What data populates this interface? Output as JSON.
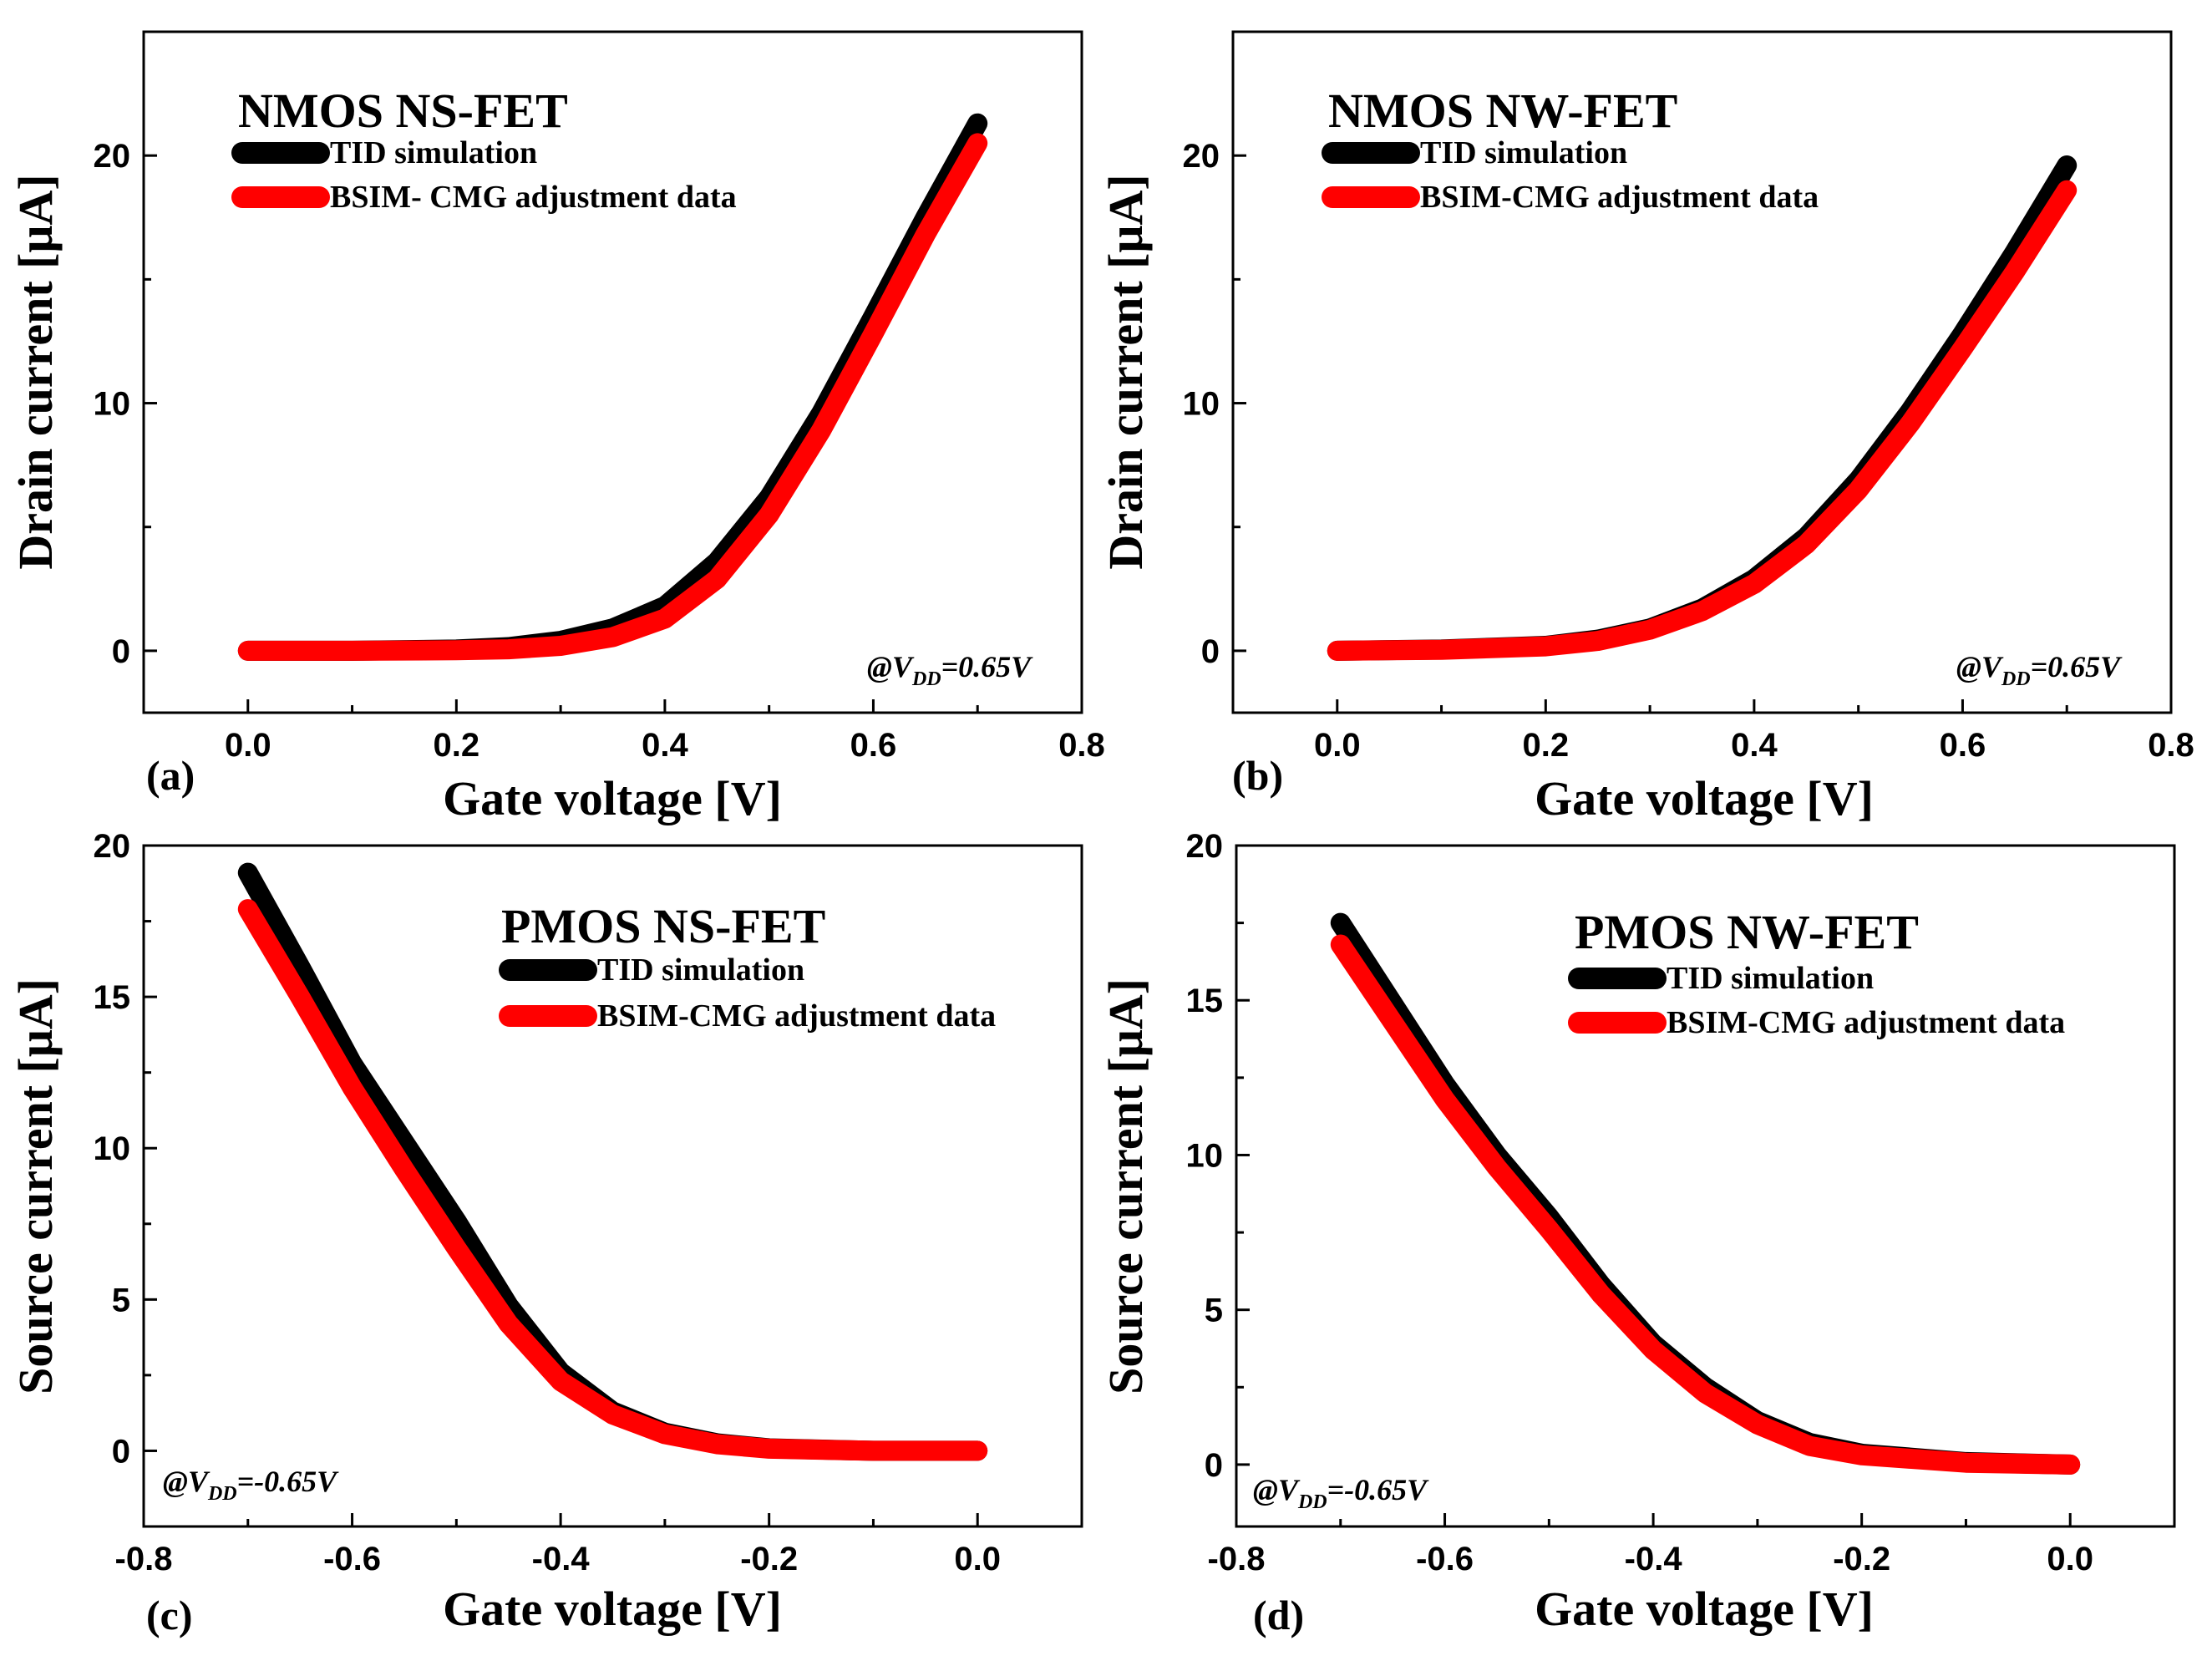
{
  "figure": {
    "label_template": "({id})"
  },
  "chart_data": [
    {
      "id": "a",
      "type": "line",
      "title": "NMOS NS-FET",
      "xlabel": "Gate voltage [V]",
      "ylabel": "Drain current [μA]",
      "xlim": [
        -0.1,
        0.8
      ],
      "ylim": [
        -2.5,
        25
      ],
      "xticks": [
        0.0,
        0.2,
        0.4,
        0.6,
        0.8
      ],
      "xtick_labels": [
        "0.0",
        "0.2",
        "0.4",
        "0.6",
        "0.8"
      ],
      "yticks": [
        0,
        10,
        20
      ],
      "ytick_labels": [
        "0",
        "10",
        "20"
      ],
      "annotation": {
        "prefix": "@V",
        "sub": "DD",
        "suffix": "=0.65V"
      },
      "legend": [
        "TID simulation",
        "BSIM- CMG adjustment data"
      ],
      "series": [
        {
          "name": "TID simulation",
          "color": "#000000",
          "x": [
            0.0,
            0.1,
            0.2,
            0.25,
            0.3,
            0.35,
            0.4,
            0.45,
            0.5,
            0.55,
            0.6,
            0.65,
            0.7
          ],
          "y": [
            0.0,
            0.0,
            0.05,
            0.15,
            0.4,
            0.9,
            1.8,
            3.6,
            6.2,
            9.6,
            13.5,
            17.5,
            21.3
          ]
        },
        {
          "name": "BSIM- CMG adjustment data",
          "color": "#ff0000",
          "x": [
            0.0,
            0.1,
            0.2,
            0.25,
            0.3,
            0.35,
            0.4,
            0.45,
            0.5,
            0.55,
            0.6,
            0.65,
            0.7
          ],
          "y": [
            0.0,
            0.0,
            0.02,
            0.06,
            0.2,
            0.55,
            1.3,
            2.9,
            5.5,
            8.9,
            12.8,
            16.8,
            20.5
          ]
        }
      ]
    },
    {
      "id": "b",
      "type": "line",
      "title": "NMOS NW-FET",
      "xlabel": "Gate voltage [V]",
      "ylabel": "Drain current [μA]",
      "xlim": [
        -0.1,
        0.8
      ],
      "ylim": [
        -2.5,
        25
      ],
      "xticks": [
        0.0,
        0.2,
        0.4,
        0.6,
        0.8
      ],
      "xtick_labels": [
        "0.0",
        "0.2",
        "0.4",
        "0.6",
        "0.8"
      ],
      "yticks": [
        0,
        10,
        20
      ],
      "ytick_labels": [
        "0",
        "10",
        "20"
      ],
      "annotation": {
        "prefix": "@V",
        "sub": "DD",
        "suffix": "=0.65V"
      },
      "legend": [
        "TID simulation",
        "BSIM-CMG adjustment data"
      ],
      "series": [
        {
          "name": "TID simulation",
          "color": "#000000",
          "x": [
            0.0,
            0.1,
            0.2,
            0.25,
            0.3,
            0.35,
            0.4,
            0.45,
            0.5,
            0.55,
            0.6,
            0.65,
            0.7
          ],
          "y": [
            0.0,
            0.05,
            0.2,
            0.45,
            0.9,
            1.7,
            2.9,
            4.6,
            6.9,
            9.7,
            12.8,
            16.1,
            19.6
          ]
        },
        {
          "name": "BSIM-CMG adjustment data",
          "color": "#ff0000",
          "x": [
            0.0,
            0.1,
            0.2,
            0.25,
            0.3,
            0.35,
            0.4,
            0.45,
            0.5,
            0.55,
            0.6,
            0.65,
            0.7
          ],
          "y": [
            0.0,
            0.04,
            0.18,
            0.4,
            0.85,
            1.6,
            2.7,
            4.3,
            6.5,
            9.2,
            12.2,
            15.3,
            18.6
          ]
        }
      ]
    },
    {
      "id": "c",
      "type": "line",
      "title": "PMOS NS-FET",
      "xlabel": "Gate voltage [V]",
      "ylabel": "Source current [μA]",
      "xlim": [
        -0.8,
        0.1
      ],
      "ylim": [
        -2.5,
        20
      ],
      "xticks": [
        -0.8,
        -0.6,
        -0.4,
        -0.2,
        0.0
      ],
      "xtick_labels": [
        "-0.8",
        "-0.6",
        "-0.4",
        "-0.2",
        "0.0"
      ],
      "yticks": [
        0,
        5,
        10,
        15,
        20
      ],
      "ytick_labels": [
        "0",
        "5",
        "10",
        "15",
        "20"
      ],
      "annotation": {
        "prefix": "@V",
        "sub": "DD",
        "suffix": "=-0.65V"
      },
      "legend": [
        "TID simulation",
        "BSIM-CMG adjustment data"
      ],
      "series": [
        {
          "name": "TID simulation",
          "color": "#000000",
          "x": [
            -0.7,
            -0.65,
            -0.6,
            -0.55,
            -0.5,
            -0.45,
            -0.4,
            -0.35,
            -0.3,
            -0.25,
            -0.2,
            -0.1,
            0.0
          ],
          "y": [
            19.1,
            16.0,
            12.8,
            10.2,
            7.6,
            4.8,
            2.6,
            1.3,
            0.6,
            0.25,
            0.08,
            0.0,
            0.0
          ]
        },
        {
          "name": "BSIM-CMG adjustment data",
          "color": "#ff0000",
          "x": [
            -0.7,
            -0.65,
            -0.6,
            -0.55,
            -0.5,
            -0.45,
            -0.4,
            -0.35,
            -0.3,
            -0.25,
            -0.2,
            -0.1,
            0.0
          ],
          "y": [
            17.9,
            15.0,
            12.0,
            9.3,
            6.7,
            4.2,
            2.3,
            1.2,
            0.55,
            0.22,
            0.07,
            0.0,
            0.0
          ]
        }
      ]
    },
    {
      "id": "d",
      "type": "line",
      "title": "PMOS NW-FET",
      "xlabel": "Gate voltage [V]",
      "ylabel": "Source current [μA]",
      "xlim": [
        -0.8,
        0.1
      ],
      "ylim": [
        -2,
        20
      ],
      "xticks": [
        -0.8,
        -0.6,
        -0.4,
        -0.2,
        0.0
      ],
      "xtick_labels": [
        "-0.8",
        "-0.6",
        "-0.4",
        "-0.2",
        "0.0"
      ],
      "yticks": [
        0,
        5,
        10,
        15,
        20
      ],
      "ytick_labels": [
        "0",
        "5",
        "10",
        "15",
        "20"
      ],
      "annotation": {
        "prefix": "@V",
        "sub": "DD",
        "suffix": "=-0.65V"
      },
      "legend": [
        "TID simulation",
        "BSIM-CMG adjustment data"
      ],
      "series": [
        {
          "name": "TID simulation",
          "color": "#000000",
          "x": [
            -0.7,
            -0.65,
            -0.6,
            -0.55,
            -0.5,
            -0.45,
            -0.4,
            -0.35,
            -0.3,
            -0.25,
            -0.2,
            -0.1,
            0.0
          ],
          "y": [
            17.5,
            14.9,
            12.3,
            10.0,
            8.0,
            5.8,
            3.9,
            2.5,
            1.4,
            0.7,
            0.35,
            0.08,
            0.0
          ]
        },
        {
          "name": "BSIM-CMG adjustment data",
          "color": "#ff0000",
          "x": [
            -0.7,
            -0.65,
            -0.6,
            -0.55,
            -0.5,
            -0.45,
            -0.4,
            -0.35,
            -0.3,
            -0.25,
            -0.2,
            -0.1,
            0.0
          ],
          "y": [
            16.8,
            14.3,
            11.8,
            9.6,
            7.6,
            5.5,
            3.7,
            2.3,
            1.3,
            0.6,
            0.3,
            0.06,
            0.0
          ]
        }
      ]
    }
  ]
}
